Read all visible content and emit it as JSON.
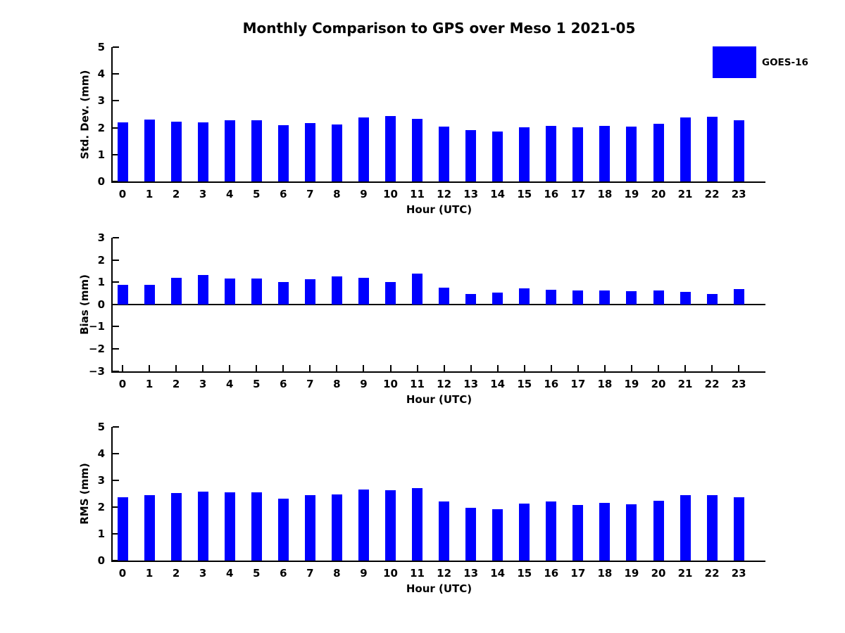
{
  "title": "Monthly Comparison to GPS over Meso 1 2021-05",
  "legend": {
    "label": "GOES-16",
    "color": "#0000ff",
    "position": "top-right"
  },
  "chart_data": [
    {
      "type": "bar",
      "id": "std-dev",
      "series_name": "GOES-16",
      "bar_color": "#0000ff",
      "categories": [
        "0",
        "1",
        "2",
        "3",
        "4",
        "5",
        "6",
        "7",
        "8",
        "9",
        "10",
        "11",
        "12",
        "13",
        "14",
        "15",
        "16",
        "17",
        "18",
        "19",
        "20",
        "21",
        "22",
        "23"
      ],
      "values": [
        2.2,
        2.3,
        2.22,
        2.2,
        2.27,
        2.27,
        2.09,
        2.16,
        2.11,
        2.37,
        2.43,
        2.32,
        2.03,
        1.92,
        1.86,
        2.01,
        2.06,
        2.01,
        2.06,
        2.03,
        2.15,
        2.38,
        2.42,
        2.28
      ],
      "xlabel": "Hour (UTC)",
      "ylabel": "Std. Dev. (mm)",
      "ylim": [
        0,
        5
      ],
      "yticks": [
        0,
        1,
        2,
        3,
        4,
        5
      ],
      "grid": false
    },
    {
      "type": "bar",
      "id": "bias",
      "series_name": "GOES-16",
      "bar_color": "#0000ff",
      "categories": [
        "0",
        "1",
        "2",
        "3",
        "4",
        "5",
        "6",
        "7",
        "8",
        "9",
        "10",
        "11",
        "12",
        "13",
        "14",
        "15",
        "16",
        "17",
        "18",
        "19",
        "20",
        "21",
        "22",
        "23"
      ],
      "values": [
        0.87,
        0.87,
        1.18,
        1.33,
        1.15,
        1.15,
        0.99,
        1.14,
        1.27,
        1.21,
        1.01,
        1.39,
        0.76,
        0.46,
        0.54,
        0.72,
        0.66,
        0.61,
        0.61,
        0.59,
        0.63,
        0.56,
        0.46,
        0.68
      ],
      "xlabel": "Hour (UTC)",
      "ylabel": "Bias (mm)",
      "ylim": [
        -3,
        3
      ],
      "yticks": [
        -3,
        -2,
        -1,
        0,
        1,
        2,
        3
      ],
      "grid": false
    },
    {
      "type": "bar",
      "id": "rms",
      "series_name": "GOES-16",
      "bar_color": "#0000ff",
      "categories": [
        "0",
        "1",
        "2",
        "3",
        "4",
        "5",
        "6",
        "7",
        "8",
        "9",
        "10",
        "11",
        "12",
        "13",
        "14",
        "15",
        "16",
        "17",
        "18",
        "19",
        "20",
        "21",
        "22",
        "23"
      ],
      "values": [
        2.37,
        2.45,
        2.52,
        2.58,
        2.56,
        2.55,
        2.32,
        2.46,
        2.48,
        2.67,
        2.62,
        2.72,
        2.21,
        1.97,
        1.93,
        2.14,
        2.2,
        2.09,
        2.17,
        2.11,
        2.24,
        2.45,
        2.45,
        2.37
      ],
      "xlabel": "Hour (UTC)",
      "ylabel": "RMS (mm)",
      "ylim": [
        0,
        5
      ],
      "yticks": [
        0,
        1,
        2,
        3,
        4,
        5
      ],
      "grid": false
    }
  ]
}
